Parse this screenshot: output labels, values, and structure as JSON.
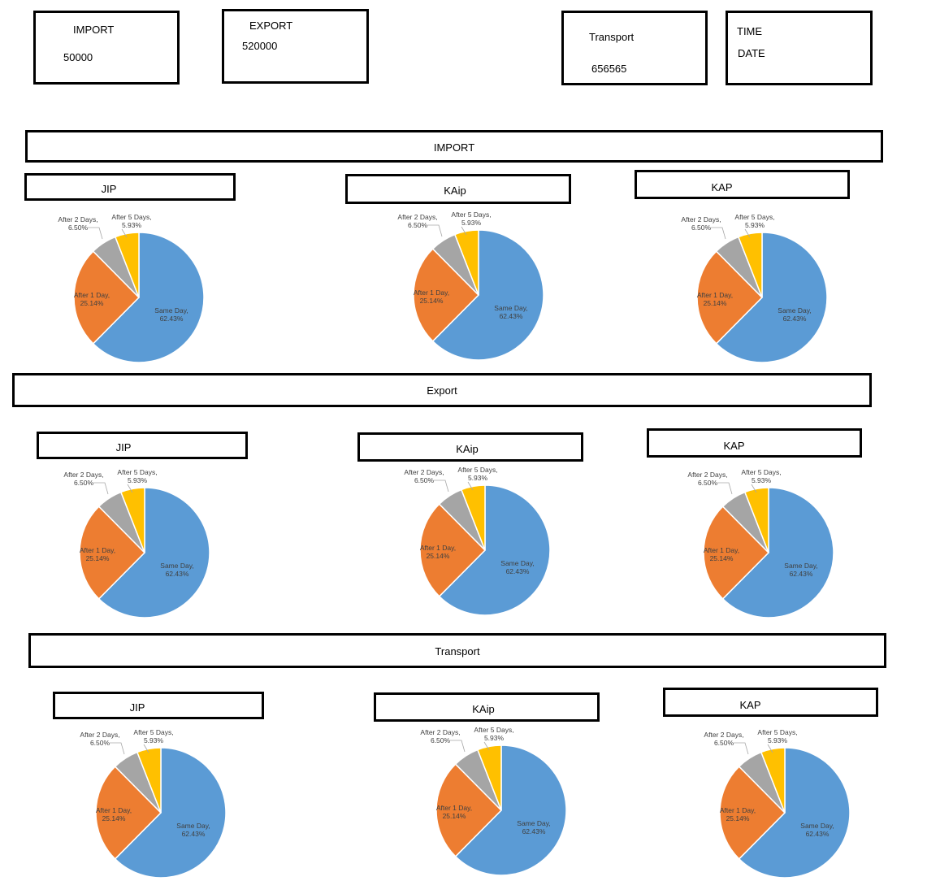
{
  "top_cards": {
    "import": {
      "label": "IMPORT",
      "value": "50000"
    },
    "export": {
      "label": "EXPORT",
      "value": "520000"
    },
    "transport": {
      "label": "Transport",
      "value": "656565"
    },
    "time": {
      "label1": "TIME",
      "label2": "DATE"
    }
  },
  "sections": [
    {
      "title": "IMPORT",
      "charts": [
        {
          "title": "JIP"
        },
        {
          "title": "KAip"
        },
        {
          "title": "KAP"
        }
      ]
    },
    {
      "title": "Export",
      "charts": [
        {
          "title": "JIP"
        },
        {
          "title": "KAip"
        },
        {
          "title": "KAP"
        }
      ]
    },
    {
      "title": "Transport",
      "charts": [
        {
          "title": "JIP"
        },
        {
          "title": "KAip"
        },
        {
          "title": "KAP"
        }
      ]
    }
  ],
  "colors": {
    "same_day": "#5B9BD5",
    "after_1_day": "#ED7D31",
    "after_2_days": "#A5A5A5",
    "after_5_days": "#FFC000"
  },
  "chart_data": [
    {
      "type": "pie",
      "section": "IMPORT",
      "title": "JIP",
      "slices": [
        {
          "label": "Same Day",
          "value": 62.43,
          "display": "62.43%",
          "color": "#5B9BD5"
        },
        {
          "label": "After 1 Day",
          "value": 25.14,
          "display": "25.14%",
          "color": "#ED7D31"
        },
        {
          "label": "After 2 Days",
          "value": 6.5,
          "display": "6.50%",
          "color": "#A5A5A5"
        },
        {
          "label": "After 5 Days",
          "value": 5.93,
          "display": "5.93%",
          "color": "#FFC000"
        }
      ]
    },
    {
      "type": "pie",
      "section": "IMPORT",
      "title": "KAip",
      "slices": [
        {
          "label": "Same Day",
          "value": 62.43,
          "display": "62.43%",
          "color": "#5B9BD5"
        },
        {
          "label": "After 1 Day",
          "value": 25.14,
          "display": "25.14%",
          "color": "#ED7D31"
        },
        {
          "label": "After 2 Days",
          "value": 6.5,
          "display": "6.50%",
          "color": "#A5A5A5"
        },
        {
          "label": "After 5 Days",
          "value": 5.93,
          "display": "5.93%",
          "color": "#FFC000"
        }
      ]
    },
    {
      "type": "pie",
      "section": "IMPORT",
      "title": "KAP",
      "slices": [
        {
          "label": "Same Day",
          "value": 62.43,
          "display": "62.43%",
          "color": "#5B9BD5"
        },
        {
          "label": "After 1 Day",
          "value": 25.14,
          "display": "25.14%",
          "color": "#ED7D31"
        },
        {
          "label": "After 2 Days",
          "value": 6.5,
          "display": "6.50%",
          "color": "#A5A5A5"
        },
        {
          "label": "After 5 Days",
          "value": 5.93,
          "display": "5.93%",
          "color": "#FFC000"
        }
      ]
    },
    {
      "type": "pie",
      "section": "Export",
      "title": "JIP",
      "slices": [
        {
          "label": "Same Day",
          "value": 62.43,
          "display": "62.43%",
          "color": "#5B9BD5"
        },
        {
          "label": "After 1 Day",
          "value": 25.14,
          "display": "25.14%",
          "color": "#ED7D31"
        },
        {
          "label": "After 2 Days",
          "value": 6.5,
          "display": "6.50%",
          "color": "#A5A5A5"
        },
        {
          "label": "After 5 Days",
          "value": 5.93,
          "display": "5.93%",
          "color": "#FFC000"
        }
      ]
    },
    {
      "type": "pie",
      "section": "Export",
      "title": "KAip",
      "slices": [
        {
          "label": "Same Day",
          "value": 62.43,
          "display": "62.43%",
          "color": "#5B9BD5"
        },
        {
          "label": "After 1 Day",
          "value": 25.14,
          "display": "25.14%",
          "color": "#ED7D31"
        },
        {
          "label": "After 2 Days",
          "value": 6.5,
          "display": "6.50%",
          "color": "#A5A5A5"
        },
        {
          "label": "After 5 Days",
          "value": 5.93,
          "display": "5.93%",
          "color": "#FFC000"
        }
      ]
    },
    {
      "type": "pie",
      "section": "Export",
      "title": "KAP",
      "slices": [
        {
          "label": "Same Day",
          "value": 62.43,
          "display": "62.43%",
          "color": "#5B9BD5"
        },
        {
          "label": "After 1 Day",
          "value": 25.14,
          "display": "25.14%",
          "color": "#ED7D31"
        },
        {
          "label": "After 2 Days",
          "value": 6.5,
          "display": "6.50%",
          "color": "#A5A5A5"
        },
        {
          "label": "After 5 Days",
          "value": 5.93,
          "display": "5.93%",
          "color": "#FFC000"
        }
      ]
    },
    {
      "type": "pie",
      "section": "Transport",
      "title": "JIP",
      "slices": [
        {
          "label": "Same Day",
          "value": 62.43,
          "display": "62.43%",
          "color": "#5B9BD5"
        },
        {
          "label": "After 1 Day",
          "value": 25.14,
          "display": "25.14%",
          "color": "#ED7D31"
        },
        {
          "label": "After 2 Days",
          "value": 6.5,
          "display": "6.50%",
          "color": "#A5A5A5"
        },
        {
          "label": "After 5 Days",
          "value": 5.93,
          "display": "5.93%",
          "color": "#FFC000"
        }
      ]
    },
    {
      "type": "pie",
      "section": "Transport",
      "title": "KAip",
      "slices": [
        {
          "label": "Same Day",
          "value": 62.43,
          "display": "62.43%",
          "color": "#5B9BD5"
        },
        {
          "label": "After 1 Day",
          "value": 25.14,
          "display": "25.14%",
          "color": "#ED7D31"
        },
        {
          "label": "After 2 Days",
          "value": 6.5,
          "display": "6.50%",
          "color": "#A5A5A5"
        },
        {
          "label": "After 5 Days",
          "value": 5.93,
          "display": "5.93%",
          "color": "#FFC000"
        }
      ]
    },
    {
      "type": "pie",
      "section": "Transport",
      "title": "KAP",
      "slices": [
        {
          "label": "Same Day",
          "value": 62.43,
          "display": "62.43%",
          "color": "#5B9BD5"
        },
        {
          "label": "After 1 Day",
          "value": 25.14,
          "display": "25.14%",
          "color": "#ED7D31"
        },
        {
          "label": "After 2 Days",
          "value": 6.5,
          "display": "6.50%",
          "color": "#A5A5A5"
        },
        {
          "label": "After 5 Days",
          "value": 5.93,
          "display": "5.93%",
          "color": "#FFC000"
        }
      ]
    }
  ]
}
